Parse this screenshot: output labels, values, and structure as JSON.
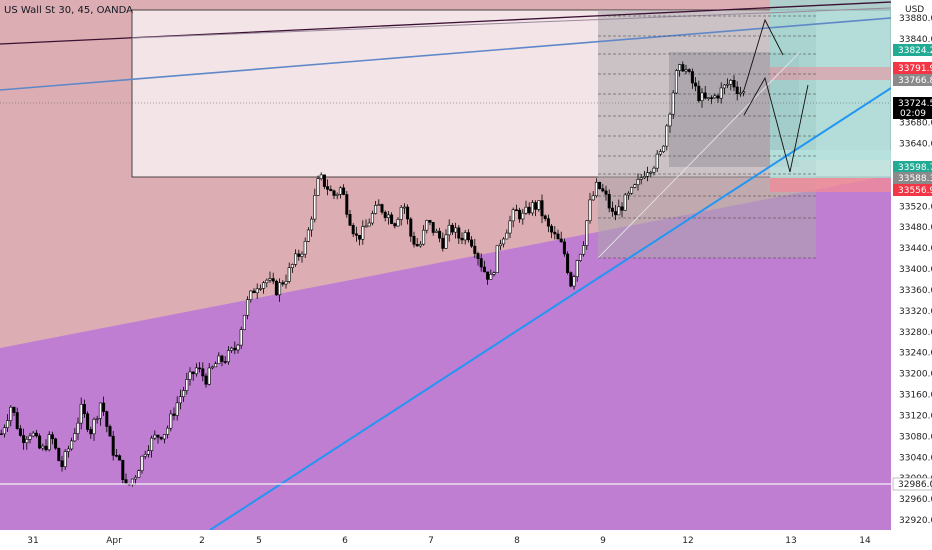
{
  "header": {
    "title": "US Wall St 30, 45, OANDA",
    "currency": "USD"
  },
  "colors": {
    "background_upper": "#dcaeb3",
    "background_lower": "#c07ed2",
    "candle": "#000000",
    "trendline": "#2196f3",
    "green_label": "#22ab94",
    "red_label": "#f23645",
    "current_label": "#000000"
  },
  "chart_data": {
    "type": "candlestick",
    "title": "US Wall St 30, 45, OANDA",
    "xlabel": "",
    "ylabel": "",
    "ylim": [
      32880,
      33925
    ],
    "grid": false,
    "x_ticks": [
      "31",
      "Apr",
      "2",
      "5",
      "6",
      "7",
      "8",
      "9",
      "12",
      "13",
      "14"
    ],
    "y_ticks": [
      33880.0,
      33840.0,
      33680.0,
      33640.0,
      33600.0,
      33560.0,
      33520.0,
      33480.0,
      33440.0,
      33400.0,
      33360.0,
      33320.0,
      33280.0,
      33240.0,
      33200.0,
      33160.0,
      33120.0,
      33080.0,
      33040.0,
      33000.0,
      32960.0,
      32920.0
    ],
    "price_labels": [
      {
        "value": 33824.2,
        "text": "33824.2",
        "color": "green"
      },
      {
        "value": 33791.9,
        "text": "33791.9",
        "color": "red"
      },
      {
        "value": 33766.8,
        "text": "33766.8",
        "color": "gray"
      },
      {
        "value": 33724.5,
        "text": "33724.5",
        "sub": "02:09",
        "color": "black"
      },
      {
        "value": 33598.7,
        "text": "33598.7",
        "color": "green"
      },
      {
        "value": 33588.3,
        "text": "33588.3",
        "color": "gray"
      },
      {
        "value": 33556.9,
        "text": "33556.9",
        "color": "red"
      },
      {
        "value": 32986.0,
        "text": "32986.0",
        "color": "white"
      }
    ],
    "path": [
      [
        0,
        33085
      ],
      [
        10,
        33140
      ],
      [
        20,
        33075
      ],
      [
        30,
        33090
      ],
      [
        40,
        33050
      ],
      [
        50,
        33080
      ],
      [
        60,
        33020
      ],
      [
        70,
        33070
      ],
      [
        80,
        33130
      ],
      [
        90,
        33090
      ],
      [
        100,
        33150
      ],
      [
        110,
        33060
      ],
      [
        120,
        33020
      ],
      [
        125,
        32980
      ],
      [
        135,
        33010
      ],
      [
        145,
        33060
      ],
      [
        155,
        33080
      ],
      [
        165,
        33090
      ],
      [
        175,
        33140
      ],
      [
        185,
        33180
      ],
      [
        195,
        33210
      ],
      [
        205,
        33190
      ],
      [
        215,
        33220
      ],
      [
        225,
        33230
      ],
      [
        235,
        33250
      ],
      [
        245,
        33330
      ],
      [
        255,
        33370
      ],
      [
        265,
        33380
      ],
      [
        275,
        33360
      ],
      [
        285,
        33385
      ],
      [
        295,
        33420
      ],
      [
        305,
        33450
      ],
      [
        312,
        33520
      ],
      [
        318,
        33575
      ],
      [
        325,
        33560
      ],
      [
        332,
        33540
      ],
      [
        340,
        33555
      ],
      [
        348,
        33500
      ],
      [
        355,
        33460
      ],
      [
        362,
        33470
      ],
      [
        370,
        33500
      ],
      [
        378,
        33520
      ],
      [
        386,
        33505
      ],
      [
        394,
        33490
      ],
      [
        402,
        33530
      ],
      [
        410,
        33460
      ],
      [
        418,
        33440
      ],
      [
        426,
        33490
      ],
      [
        434,
        33470
      ],
      [
        442,
        33450
      ],
      [
        450,
        33480
      ],
      [
        458,
        33460
      ],
      [
        466,
        33470
      ],
      [
        474,
        33440
      ],
      [
        482,
        33400
      ],
      [
        490,
        33380
      ],
      [
        498,
        33450
      ],
      [
        506,
        33480
      ],
      [
        514,
        33510
      ],
      [
        522,
        33500
      ],
      [
        530,
        33520
      ],
      [
        538,
        33520
      ],
      [
        546,
        33480
      ],
      [
        554,
        33460
      ],
      [
        562,
        33440
      ],
      [
        570,
        33370
      ],
      [
        576,
        33420
      ],
      [
        582,
        33450
      ],
      [
        588,
        33520
      ],
      [
        596,
        33560
      ],
      [
        604,
        33540
      ],
      [
        612,
        33500
      ],
      [
        620,
        33520
      ],
      [
        628,
        33540
      ],
      [
        636,
        33560
      ],
      [
        644,
        33590
      ],
      [
        652,
        33600
      ],
      [
        660,
        33620
      ],
      [
        668,
        33700
      ],
      [
        675,
        33770
      ],
      [
        682,
        33790
      ],
      [
        690,
        33760
      ],
      [
        698,
        33730
      ],
      [
        706,
        33720
      ],
      [
        714,
        33730
      ],
      [
        722,
        33745
      ],
      [
        730,
        33760
      ],
      [
        738,
        33740
      ],
      [
        744,
        33735
      ]
    ]
  }
}
